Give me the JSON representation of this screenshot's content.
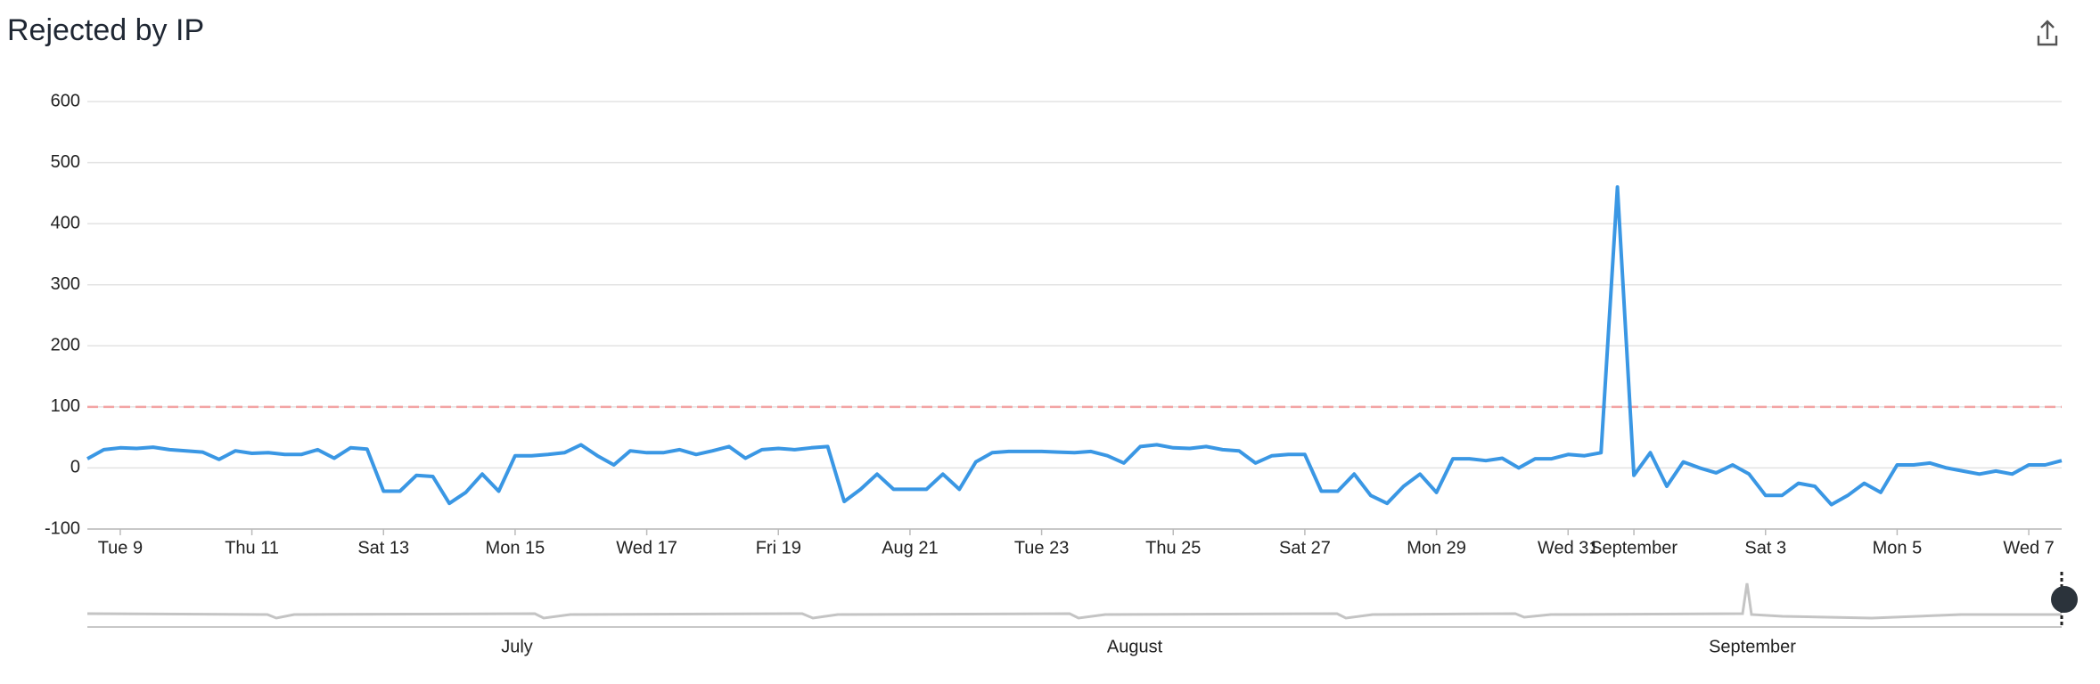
{
  "chart_data": {
    "type": "line",
    "title": "Rejected by IP",
    "categories": [
      null,
      null,
      "Tue 9",
      null,
      null,
      null,
      null,
      null,
      null,
      null,
      "Thu 11",
      null,
      null,
      null,
      null,
      null,
      null,
      null,
      "Sat 13",
      null,
      null,
      null,
      null,
      null,
      null,
      null,
      "Mon 15",
      null,
      null,
      null,
      null,
      null,
      null,
      null,
      "Wed 17",
      null,
      null,
      null,
      null,
      null,
      null,
      null,
      "Fri 19",
      null,
      null,
      null,
      null,
      null,
      null,
      null,
      "Aug 21",
      null,
      null,
      null,
      null,
      null,
      null,
      null,
      "Tue 23",
      null,
      null,
      null,
      null,
      null,
      null,
      null,
      "Thu 25",
      null,
      null,
      null,
      null,
      null,
      null,
      null,
      "Sat 27",
      null,
      null,
      null,
      null,
      null,
      null,
      null,
      "Mon 29",
      null,
      null,
      null,
      null,
      null,
      null,
      null,
      "Wed 31",
      null,
      null,
      null,
      "September",
      null,
      null,
      null,
      null,
      null,
      null,
      null,
      "Sat 3",
      null,
      null,
      null,
      null,
      null,
      null,
      null,
      "Mon 5",
      null,
      null,
      null,
      null,
      null,
      null,
      null,
      "Wed 7",
      null,
      null
    ],
    "values": [
      15,
      30,
      33,
      32,
      34,
      30,
      28,
      26,
      14,
      28,
      24,
      25,
      22,
      22,
      30,
      16,
      33,
      31,
      -38,
      -38,
      -12,
      -14,
      -58,
      -40,
      -10,
      -38,
      20,
      20,
      22,
      25,
      38,
      20,
      5,
      28,
      25,
      25,
      30,
      22,
      28,
      35,
      16,
      30,
      32,
      30,
      33,
      35,
      -55,
      -35,
      -10,
      -35,
      -35,
      -35,
      -10,
      -35,
      10,
      25,
      27,
      27,
      27,
      26,
      25,
      27,
      20,
      8,
      35,
      38,
      33,
      32,
      35,
      30,
      28,
      8,
      20,
      22,
      22,
      -38,
      -38,
      -10,
      -45,
      -58,
      -30,
      -10,
      -40,
      15,
      15,
      12,
      16,
      0,
      15,
      15,
      22,
      20,
      25,
      460,
      -12,
      25,
      -30,
      10,
      0,
      -8,
      5,
      -10,
      -45,
      -45,
      -25,
      -30,
      -60,
      -45,
      -25,
      -40,
      5,
      5,
      8,
      0,
      -5,
      -10,
      -5,
      -10,
      5,
      5,
      12
    ],
    "color": "#3a97e4",
    "ylim": [
      -100,
      600
    ],
    "yticks": [
      -100,
      0,
      100,
      200,
      300,
      400,
      500,
      600
    ],
    "grid": true,
    "threshold": {
      "value": 100,
      "color": "#f2a3a3"
    },
    "navigator": {
      "labels": [
        "July",
        "August",
        "September"
      ]
    }
  }
}
